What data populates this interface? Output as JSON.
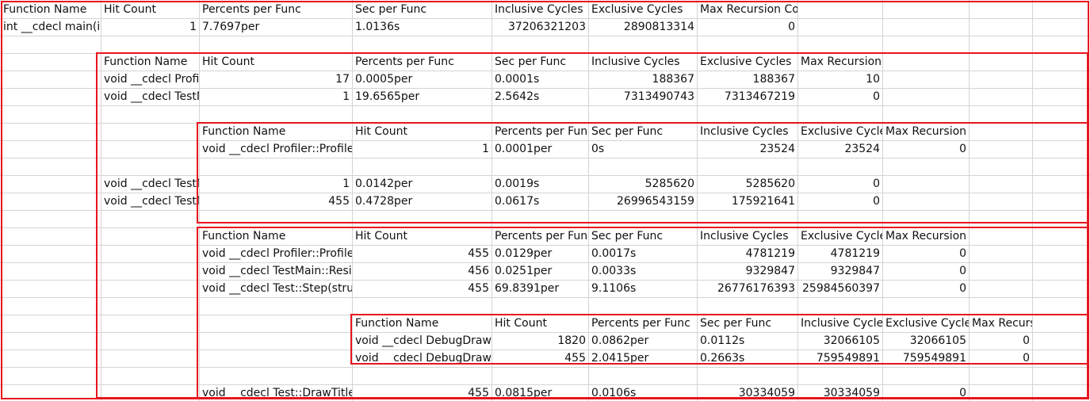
{
  "colors": {
    "grid": "#d4d4d4",
    "highlight_border": "#e8141c",
    "text": "#111111"
  },
  "rows": [
    {
      "cells": [
        {
          "col": 0,
          "text": "Function Name"
        },
        {
          "col": 1,
          "text": "Hit Count"
        },
        {
          "col": 2,
          "text": "Percents per Func"
        },
        {
          "col": 3,
          "text": "Sec per Func"
        },
        {
          "col": 4,
          "text": "Inclusive Cycles"
        },
        {
          "col": 5,
          "text": "Exclusive Cycles"
        },
        {
          "col": 6,
          "text": "Max Recursion Count"
        }
      ]
    },
    {
      "cells": [
        {
          "col": 0,
          "text": "int __cdecl main(i"
        },
        {
          "col": 1,
          "text": "1",
          "num": true
        },
        {
          "col": 2,
          "text": "7.7697per"
        },
        {
          "col": 3,
          "text": "1.0136s"
        },
        {
          "col": 4,
          "text": "37206321203",
          "num": true
        },
        {
          "col": 5,
          "text": "2890813314",
          "num": true
        },
        {
          "col": 6,
          "text": "0",
          "num": true
        }
      ]
    },
    {
      "cells": []
    },
    {
      "cells": [
        {
          "col": 1,
          "text": "Function Name"
        },
        {
          "col": 2,
          "text": "Hit Count"
        },
        {
          "col": 3,
          "text": "Percents per Func"
        },
        {
          "col": 4,
          "text": "Sec per Func"
        },
        {
          "col": 5,
          "text": "Inclusive Cycles"
        },
        {
          "col": 6,
          "text": "Exclusive Cycles"
        },
        {
          "col": 7,
          "text": "Max Recursion Count"
        }
      ]
    },
    {
      "cells": [
        {
          "col": 1,
          "text": "void __cdecl Profi"
        },
        {
          "col": 2,
          "text": "17",
          "num": true
        },
        {
          "col": 3,
          "text": "0.0005per"
        },
        {
          "col": 4,
          "text": "0.0001s"
        },
        {
          "col": 5,
          "text": "188367",
          "num": true
        },
        {
          "col": 6,
          "text": "188367",
          "num": true
        },
        {
          "col": 7,
          "text": "10",
          "num": true
        }
      ]
    },
    {
      "cells": [
        {
          "col": 1,
          "text": "void __cdecl TestM"
        },
        {
          "col": 2,
          "text": "1",
          "num": true
        },
        {
          "col": 3,
          "text": "19.6565per"
        },
        {
          "col": 4,
          "text": "2.5642s"
        },
        {
          "col": 5,
          "text": "7313490743",
          "num": true
        },
        {
          "col": 6,
          "text": "7313467219",
          "num": true
        },
        {
          "col": 7,
          "text": "0",
          "num": true
        }
      ]
    },
    {
      "cells": []
    },
    {
      "cells": [
        {
          "col": 2,
          "text": "Function Name"
        },
        {
          "col": 3,
          "text": "Hit Count"
        },
        {
          "col": 4,
          "text": "Percents per Fun"
        },
        {
          "col": 5,
          "text": "Sec per Func"
        },
        {
          "col": 6,
          "text": "Inclusive Cycles"
        },
        {
          "col": 7,
          "text": "Exclusive Cycle"
        },
        {
          "col": 8,
          "text": "Max Recursion Count"
        }
      ]
    },
    {
      "cells": [
        {
          "col": 2,
          "text": "void __cdecl Profiler::Profile"
        },
        {
          "col": 3,
          "text": "1",
          "num": true
        },
        {
          "col": 4,
          "text": "0.0001per"
        },
        {
          "col": 5,
          "text": "0s"
        },
        {
          "col": 6,
          "text": "23524",
          "num": true
        },
        {
          "col": 7,
          "text": "23524",
          "num": true
        },
        {
          "col": 8,
          "text": "0",
          "num": true
        }
      ]
    },
    {
      "cells": []
    },
    {
      "cells": [
        {
          "col": 1,
          "text": "void __cdecl TestM"
        },
        {
          "col": 2,
          "text": "1",
          "num": true
        },
        {
          "col": 3,
          "text": "0.0142per"
        },
        {
          "col": 4,
          "text": "0.0019s"
        },
        {
          "col": 5,
          "text": "5285620",
          "num": true
        },
        {
          "col": 6,
          "text": "5285620",
          "num": true
        },
        {
          "col": 7,
          "text": "0",
          "num": true
        }
      ]
    },
    {
      "cells": [
        {
          "col": 1,
          "text": "void __cdecl TestM"
        },
        {
          "col": 2,
          "text": "455",
          "num": true
        },
        {
          "col": 3,
          "text": "0.4728per"
        },
        {
          "col": 4,
          "text": "0.0617s"
        },
        {
          "col": 5,
          "text": "26996543159",
          "num": true
        },
        {
          "col": 6,
          "text": "175921641",
          "num": true
        },
        {
          "col": 7,
          "text": "0",
          "num": true
        }
      ]
    },
    {
      "cells": []
    },
    {
      "cells": [
        {
          "col": 2,
          "text": "Function Name"
        },
        {
          "col": 3,
          "text": "Hit Count"
        },
        {
          "col": 4,
          "text": "Percents per Fun"
        },
        {
          "col": 5,
          "text": "Sec per Func"
        },
        {
          "col": 6,
          "text": "Inclusive Cycles"
        },
        {
          "col": 7,
          "text": "Exclusive Cycle"
        },
        {
          "col": 8,
          "text": "Max Recursion Count"
        }
      ]
    },
    {
      "cells": [
        {
          "col": 2,
          "text": "void __cdecl Profiler::Profile"
        },
        {
          "col": 3,
          "text": "455",
          "num": true
        },
        {
          "col": 4,
          "text": "0.0129per"
        },
        {
          "col": 5,
          "text": "0.0017s"
        },
        {
          "col": 6,
          "text": "4781219",
          "num": true
        },
        {
          "col": 7,
          "text": "4781219",
          "num": true
        },
        {
          "col": 8,
          "text": "0",
          "num": true
        }
      ]
    },
    {
      "cells": [
        {
          "col": 2,
          "text": "void __cdecl TestMain::Resiz"
        },
        {
          "col": 3,
          "text": "456",
          "num": true
        },
        {
          "col": 4,
          "text": "0.0251per"
        },
        {
          "col": 5,
          "text": "0.0033s"
        },
        {
          "col": 6,
          "text": "9329847",
          "num": true
        },
        {
          "col": 7,
          "text": "9329847",
          "num": true
        },
        {
          "col": 8,
          "text": "0",
          "num": true
        }
      ]
    },
    {
      "cells": [
        {
          "col": 2,
          "text": "void __cdecl Test::Step(struc"
        },
        {
          "col": 3,
          "text": "455",
          "num": true
        },
        {
          "col": 4,
          "text": "69.8391per"
        },
        {
          "col": 5,
          "text": "9.1106s"
        },
        {
          "col": 6,
          "text": "26776176393",
          "num": true
        },
        {
          "col": 7,
          "text": "25984560397",
          "num": true
        },
        {
          "col": 8,
          "text": "0",
          "num": true
        }
      ]
    },
    {
      "cells": []
    },
    {
      "cells": [
        {
          "col": 3,
          "text": "Function Name"
        },
        {
          "col": 4,
          "text": "Hit Count"
        },
        {
          "col": 5,
          "text": "Percents per Func"
        },
        {
          "col": 6,
          "text": "Sec per Func"
        },
        {
          "col": 7,
          "text": "Inclusive Cycle"
        },
        {
          "col": 8,
          "text": "Exclusive Cycle"
        },
        {
          "col": 9,
          "text": "Max Recursion Count"
        }
      ]
    },
    {
      "cells": [
        {
          "col": 3,
          "text": "void __cdecl DebugDraw"
        },
        {
          "col": 4,
          "text": "1820",
          "num": true
        },
        {
          "col": 5,
          "text": "0.0862per"
        },
        {
          "col": 6,
          "text": "0.0112s"
        },
        {
          "col": 7,
          "text": "32066105",
          "num": true
        },
        {
          "col": 8,
          "text": "32066105",
          "num": true
        },
        {
          "col": 9,
          "text": "0",
          "num": true
        }
      ]
    },
    {
      "cells": [
        {
          "col": 3,
          "text": "void __cdecl DebugDraw"
        },
        {
          "col": 4,
          "text": "455",
          "num": true
        },
        {
          "col": 5,
          "text": "2.0415per"
        },
        {
          "col": 6,
          "text": "0.2663s"
        },
        {
          "col": 7,
          "text": "759549891",
          "num": true
        },
        {
          "col": 8,
          "text": "759549891",
          "num": true
        },
        {
          "col": 9,
          "text": "0",
          "num": true
        }
      ]
    },
    {
      "cells": []
    },
    {
      "cells": [
        {
          "col": 2,
          "text": "void __cdecl Test::DrawTitle("
        },
        {
          "col": 3,
          "text": "455",
          "num": true
        },
        {
          "col": 4,
          "text": "0.0815per"
        },
        {
          "col": 5,
          "text": "0.0106s"
        },
        {
          "col": 6,
          "text": "30334059",
          "num": true
        },
        {
          "col": 7,
          "text": "30334059",
          "num": true
        },
        {
          "col": 8,
          "text": "0",
          "num": true
        }
      ]
    }
  ]
}
